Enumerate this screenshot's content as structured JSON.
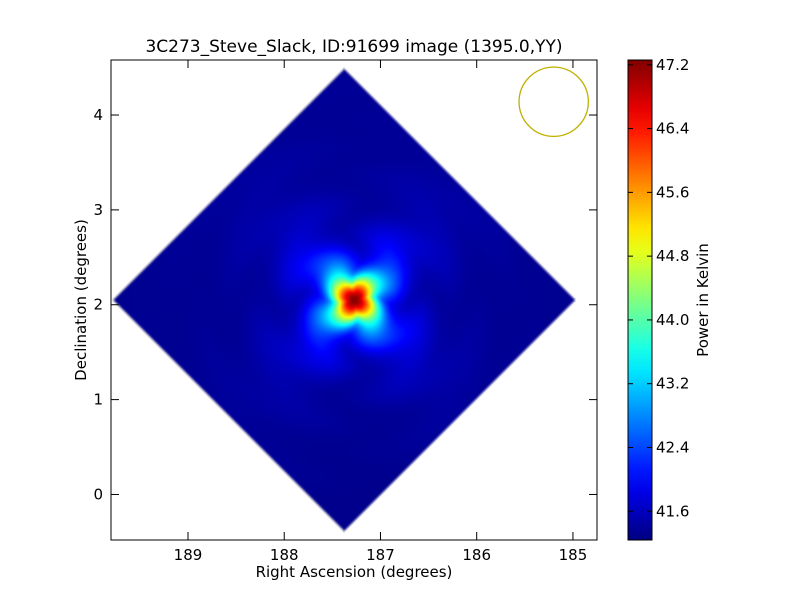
{
  "chart_data": {
    "type": "heatmap",
    "title": "3C273_Steve_Slack, ID:91699 image (1395.0,YY)",
    "xlabel": "Right Ascension (degrees)",
    "ylabel": "Declination (degrees)",
    "xlim": [
      189.8,
      184.75
    ],
    "ylim": [
      -0.48,
      4.58
    ],
    "x_reversed": true,
    "xticks": [
      189,
      188,
      187,
      186,
      185
    ],
    "yticks": [
      0,
      1,
      2,
      3,
      4
    ],
    "grid": false,
    "colormap": "jet",
    "colorbar": {
      "label": "Power in Kelvin",
      "min": 41.24,
      "max": 47.26,
      "ticks": [
        "41.6",
        "42.4",
        "43.2",
        "44.0",
        "44.8",
        "45.6",
        "46.4",
        "47.2"
      ]
    },
    "coverage": {
      "type": "diamond",
      "vertices_ra_dec": [
        [
          187.38,
          4.52
        ],
        [
          184.98,
          2.05
        ],
        [
          187.38,
          -0.42
        ],
        [
          189.76,
          2.05
        ]
      ],
      "outside_value": null
    },
    "background_level": 41.3,
    "source": {
      "ra": 187.27,
      "dec": 2.05,
      "peak": 47.2
    },
    "beam": {
      "ra": 185.2,
      "dec": 4.14,
      "radius_deg": 0.36,
      "color": "#c0b000"
    }
  }
}
